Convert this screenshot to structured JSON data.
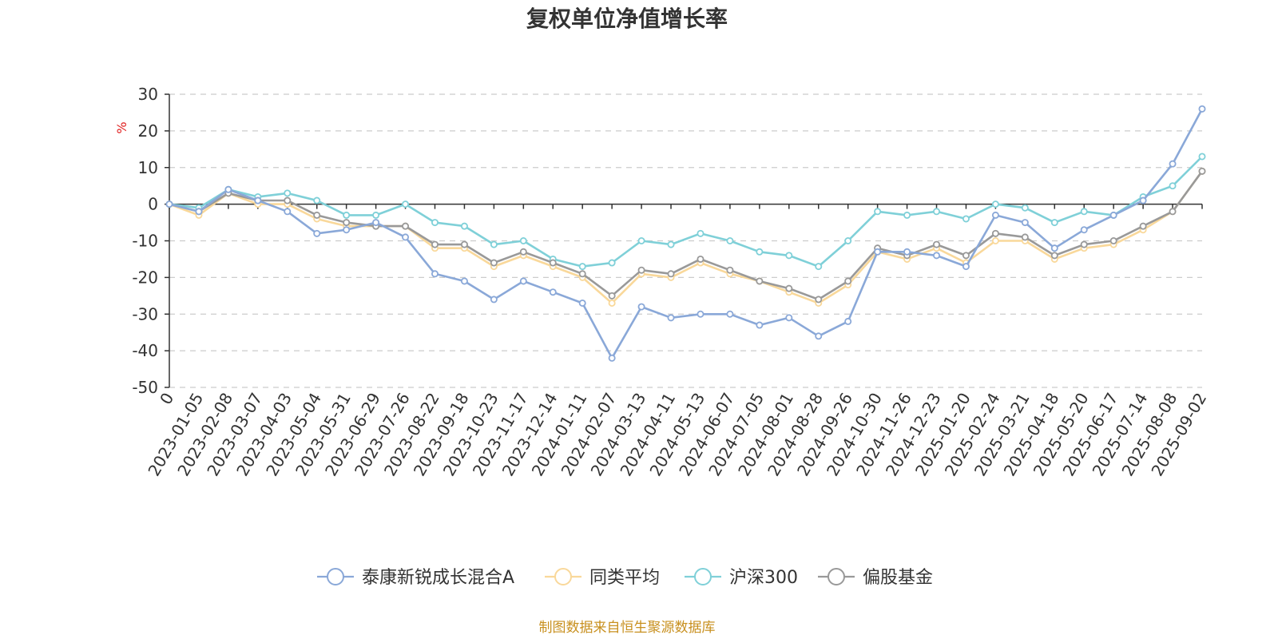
{
  "chart_data": {
    "type": "line",
    "title": "复权单位净值增长率",
    "ylabel": "%",
    "ylim": [
      -50,
      30
    ],
    "yticks": [
      30,
      20,
      10,
      0,
      -10,
      -20,
      -30,
      -40,
      -50
    ],
    "grid": true,
    "legend_position": "bottom",
    "source_note": "制图数据来自恒生聚源数据库",
    "x_ticks": [
      "0",
      "2023-01-05",
      "2023-02-08",
      "2023-03-07",
      "2023-04-03",
      "2023-05-04",
      "2023-05-31",
      "2023-06-29",
      "2023-07-26",
      "2023-08-22",
      "2023-09-18",
      "2023-10-23",
      "2023-11-17",
      "2023-12-14",
      "2024-01-11",
      "2024-02-07",
      "2024-03-13",
      "2024-04-11",
      "2024-05-13",
      "2024-06-07",
      "2024-07-05",
      "2024-08-01",
      "2024-08-28",
      "2024-09-26",
      "2024-10-30",
      "2024-11-26",
      "2024-12-23",
      "2025-01-20",
      "2025-02-24",
      "2025-03-21",
      "2025-04-18",
      "2025-05-20",
      "2025-06-17",
      "2025-07-14",
      "2025-08-08",
      "2025-09-02"
    ],
    "series": [
      {
        "name": "泰康新锐成长混合A",
        "color": "#8aa8d8",
        "values": [
          0,
          -2,
          4,
          1,
          -2,
          -8,
          -7,
          -5,
          -9,
          -19,
          -21,
          -26,
          -21,
          -24,
          -27,
          -42,
          -28,
          -31,
          -30,
          -30,
          -33,
          -31,
          -36,
          -32,
          -13,
          -13,
          -14,
          -17,
          -3,
          -5,
          -12,
          -7,
          -3,
          1,
          11,
          26
        ]
      },
      {
        "name": "同类平均",
        "color": "#f9d89a",
        "values": [
          0,
          -3,
          3,
          0,
          0,
          -4,
          -6,
          -6,
          -6,
          -12,
          -12,
          -17,
          -14,
          -17,
          -20,
          -27,
          -19,
          -20,
          -16,
          -19,
          -21,
          -24,
          -27,
          -22,
          -13,
          -15,
          -12,
          -16,
          -10,
          -10,
          -15,
          -12,
          -11,
          -7,
          -2,
          9
        ]
      },
      {
        "name": "沪深300",
        "color": "#7fd0d8",
        "values": [
          0,
          -1,
          4,
          2,
          3,
          1,
          -3,
          -3,
          0,
          -5,
          -6,
          -11,
          -10,
          -15,
          -17,
          -16,
          -10,
          -11,
          -8,
          -10,
          -13,
          -14,
          -17,
          -10,
          -2,
          -3,
          -2,
          -4,
          0,
          -1,
          -5,
          -2,
          -3,
          2,
          5,
          13
        ]
      },
      {
        "name": "偏股基金",
        "color": "#999999",
        "values": [
          0,
          -2,
          3,
          1,
          1,
          -3,
          -5,
          -6,
          -6,
          -11,
          -11,
          -16,
          -13,
          -16,
          -19,
          -25,
          -18,
          -19,
          -15,
          -18,
          -21,
          -23,
          -26,
          -21,
          -12,
          -14,
          -11,
          -14,
          -8,
          -9,
          -14,
          -11,
          -10,
          -6,
          -2,
          9
        ]
      }
    ]
  }
}
